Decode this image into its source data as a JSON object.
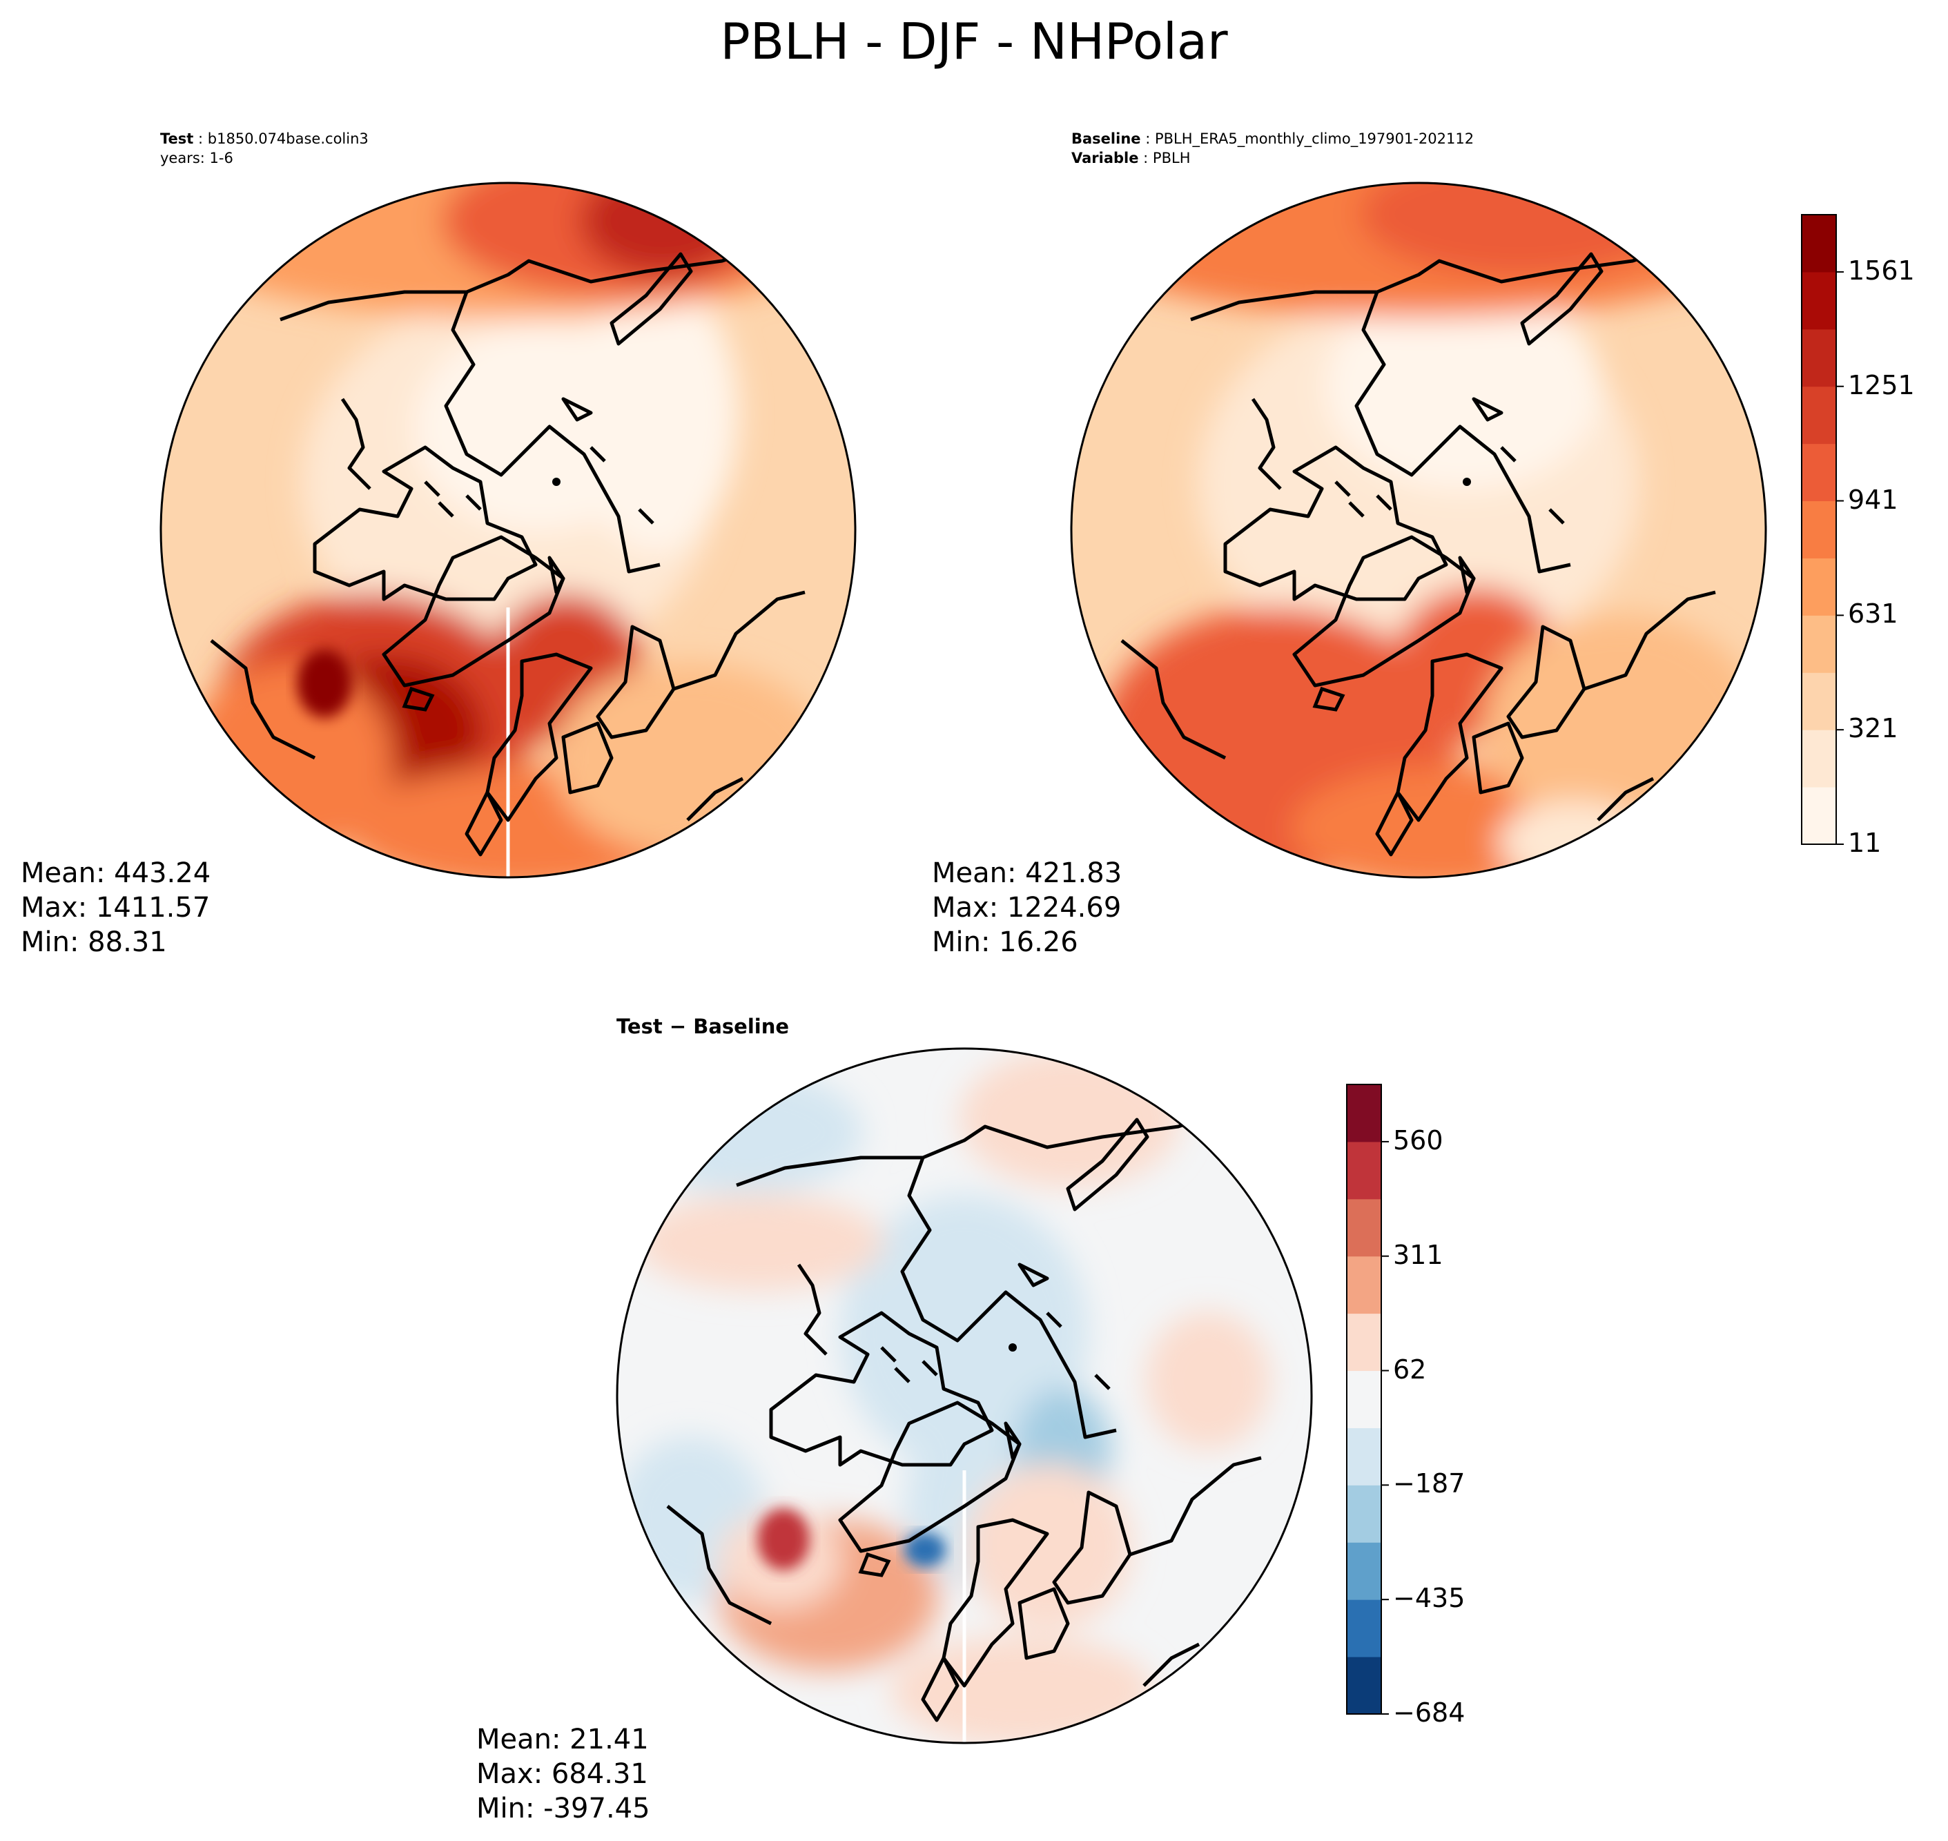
{
  "figure": {
    "title": "PBLH - DJF - NHPolar"
  },
  "panels": {
    "test": {
      "label_key": "Test",
      "label_value": "b1850.074base.colin3",
      "years_line": "years: 1-6",
      "stats": {
        "mean": "Mean: 443.24",
        "max": "Max: 1411.57",
        "min": "Min: 88.31"
      }
    },
    "baseline": {
      "label_key": "Baseline",
      "label_value": "PBLH_ERA5_monthly_climo_197901-202112",
      "variable_key": "Variable",
      "variable_value": "PBLH",
      "stats": {
        "mean": "Mean: 421.83",
        "max": "Max: 1224.69",
        "min": "Min: 16.26"
      }
    },
    "diff": {
      "title": "Test − Baseline",
      "stats": {
        "mean": "Mean: 21.41",
        "max": "Max: 684.31",
        "min": "Min: -397.45"
      }
    }
  },
  "chart_data": [
    {
      "type": "heatmap",
      "name": "test",
      "projection": "north-polar-stereographic",
      "stats": {
        "mean": 443.24,
        "max": 1411.57,
        "min": 88.31
      }
    },
    {
      "type": "heatmap",
      "name": "baseline",
      "projection": "north-polar-stereographic",
      "stats": {
        "mean": 421.83,
        "max": 1224.69,
        "min": 16.26
      }
    },
    {
      "type": "heatmap",
      "name": "difference",
      "projection": "north-polar-stereographic",
      "stats": {
        "mean": 21.41,
        "max": 684.31,
        "min": -397.45
      }
    }
  ],
  "colorbars": {
    "main": {
      "ticks": [
        "1561",
        "1251",
        "941",
        "631",
        "321",
        "11"
      ],
      "colors": [
        "#fff5eb",
        "#fee8d3",
        "#fdd4ad",
        "#fdbd86",
        "#fd9e5e",
        "#f87d43",
        "#ec5c37",
        "#d84128",
        "#c1271a",
        "#aa0b06",
        "#8b0000"
      ]
    },
    "diff": {
      "ticks": [
        "560",
        "311",
        "62",
        "−187",
        "−435",
        "−684"
      ],
      "colors": [
        "#0b3c78",
        "#2a70b2",
        "#5fa0cb",
        "#a3cce2",
        "#d4e6f1",
        "#f4f5f6",
        "#fbdccd",
        "#f3a584",
        "#dc6f58",
        "#c0343a",
        "#800c24"
      ]
    }
  }
}
